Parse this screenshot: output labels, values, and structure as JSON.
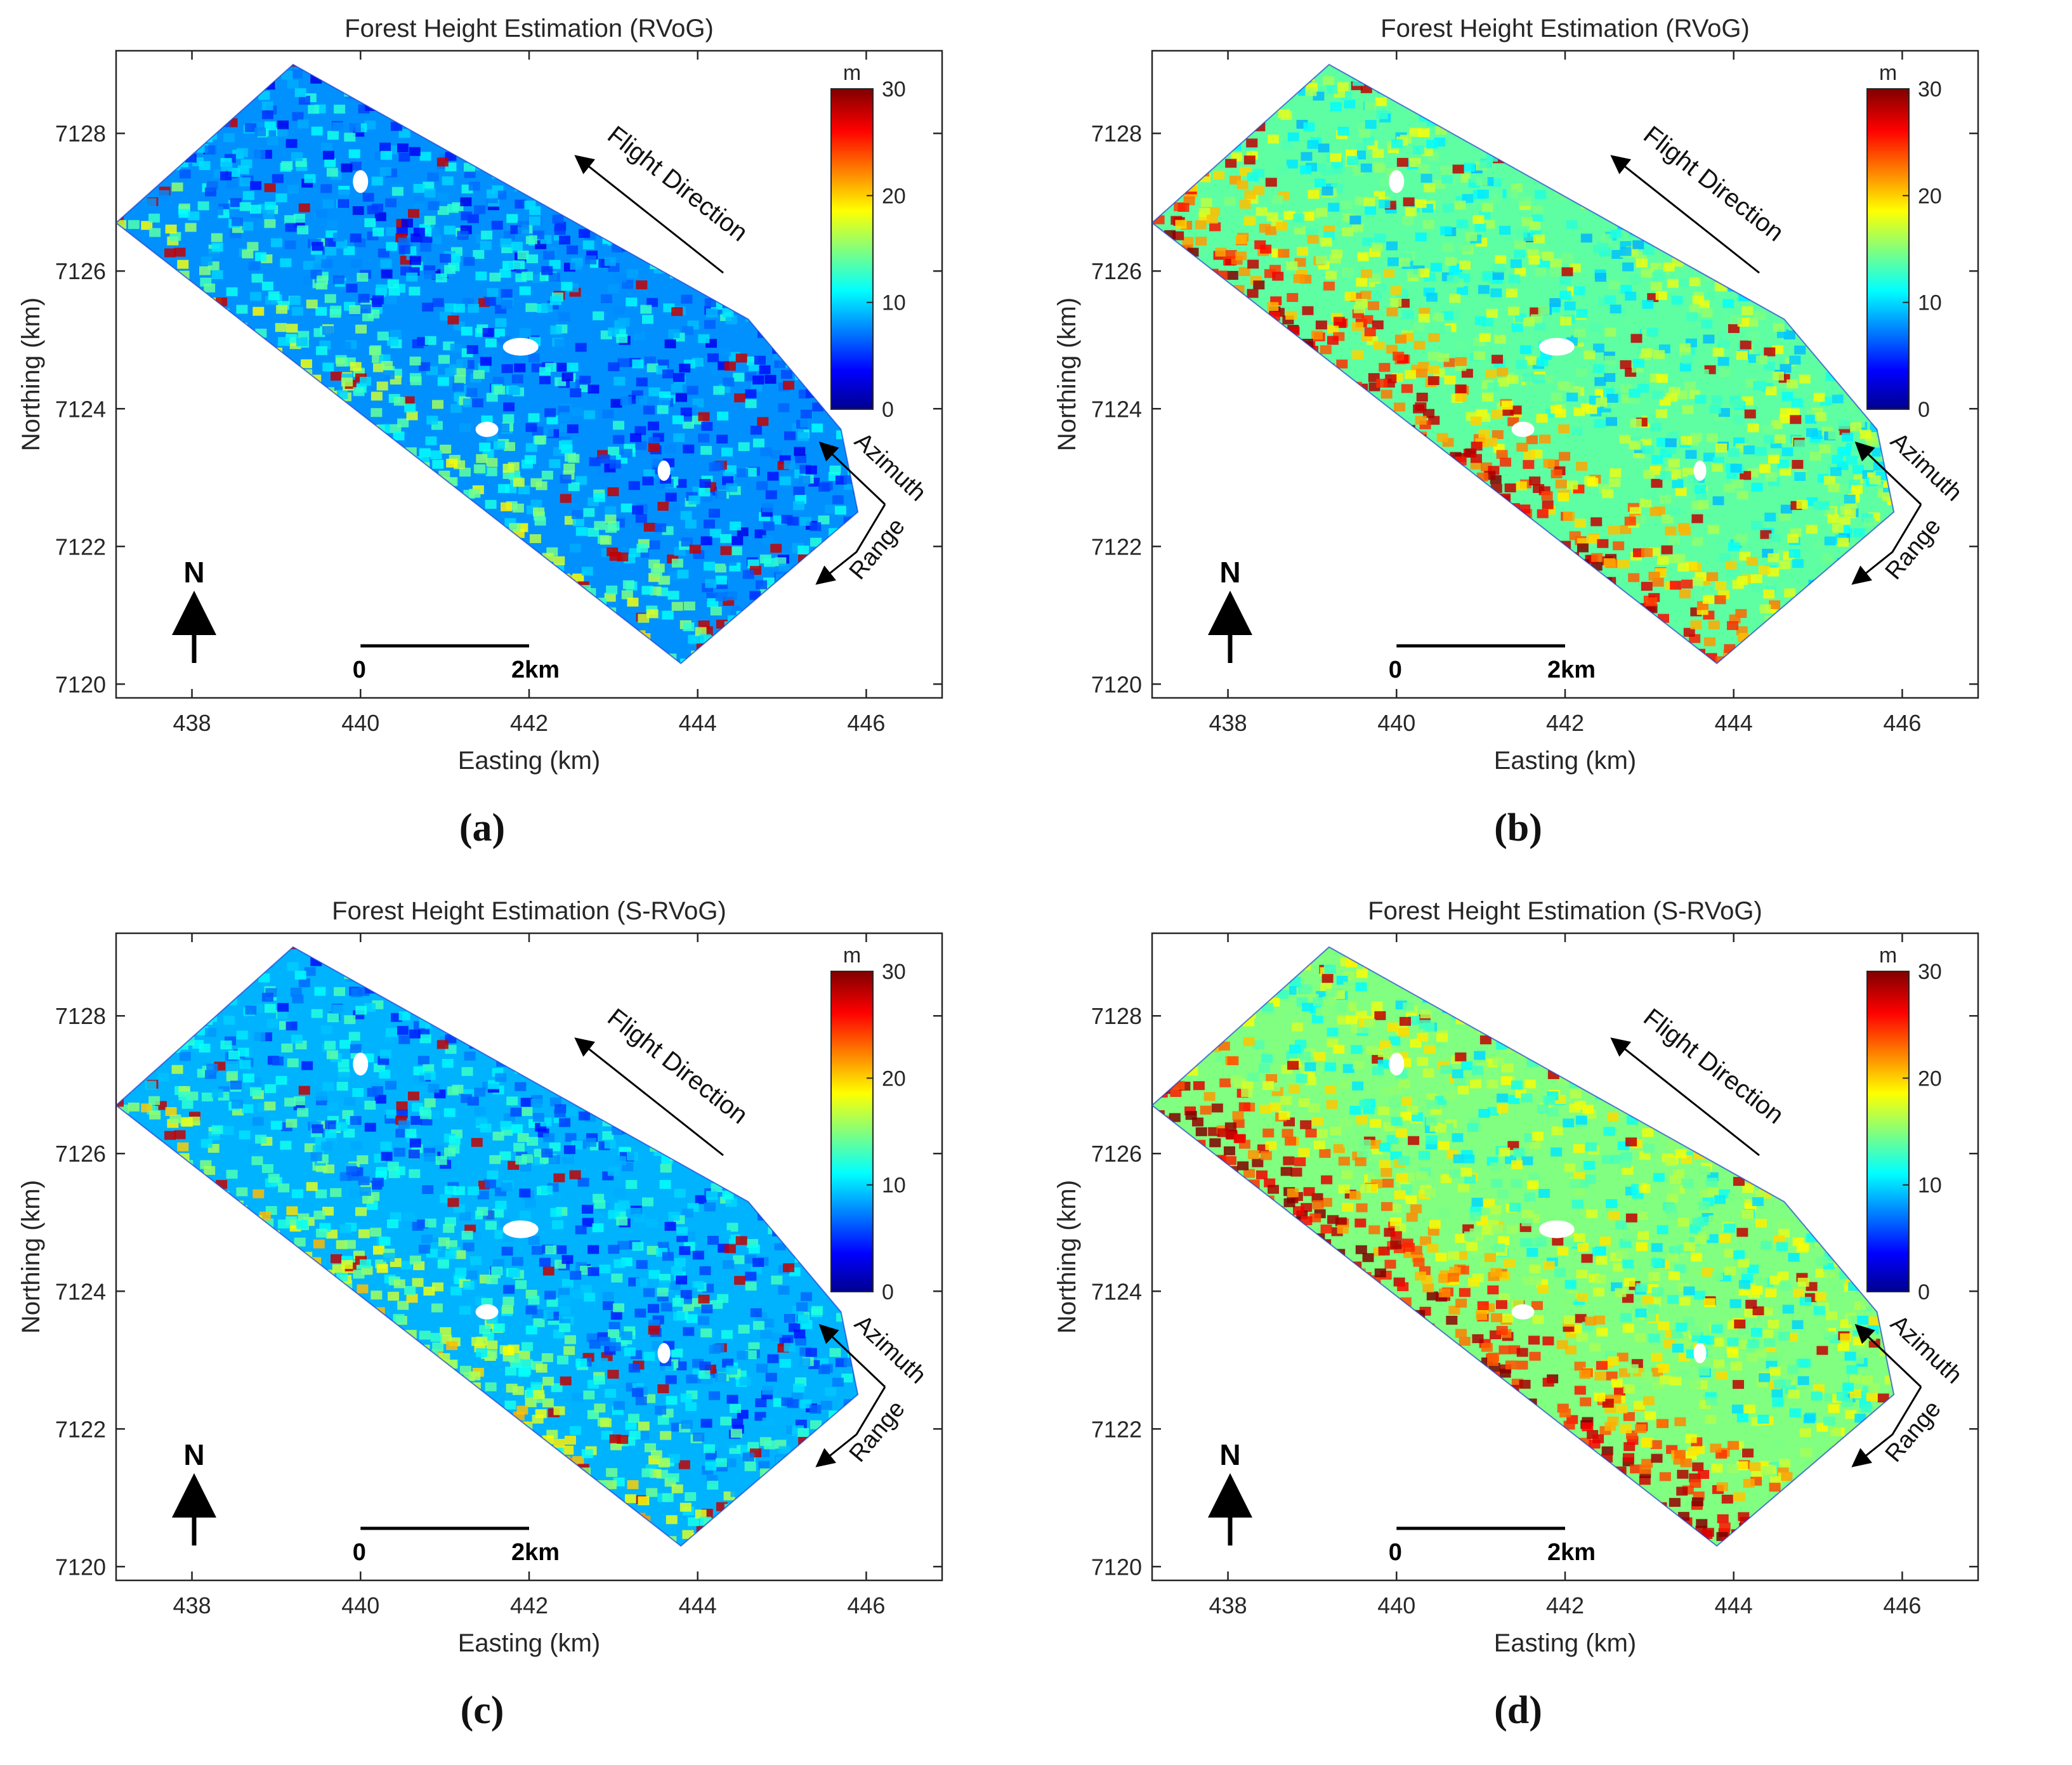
{
  "colors": {
    "jet_dark_blue": "#00008f",
    "jet_blue": "#0000ff",
    "jet_cyan": "#00ffff",
    "jet_yellow": "#ffff00",
    "jet_red": "#ff0000",
    "jet_dark_red": "#800000",
    "axis": "#262626"
  },
  "icons": {
    "north_arrow": "north-arrow-icon",
    "flight_arrow": "arrow-icon"
  },
  "panels": [
    {
      "caption": "(a)",
      "title": "Forest Height Estimation (RVoG)",
      "xlabel": "Easting (km)",
      "ylabel": "Northing (km)",
      "xticks": [
        "438",
        "440",
        "442",
        "444",
        "446"
      ],
      "yticks": [
        "7120",
        "7122",
        "7124",
        "7126",
        "7128"
      ],
      "colorbar": {
        "unit": "m",
        "ticks": [
          "0",
          "10",
          "20",
          "30"
        ],
        "range": [
          0,
          30
        ]
      },
      "flight_direction": "Flight Direction",
      "azimuth": "Azimuth",
      "range_label": "Range",
      "north": "N",
      "scalebar": {
        "start": "0",
        "end": "2km"
      },
      "dominant_height_m": 8
    },
    {
      "caption": "(b)",
      "title": "Forest Height Estimation (RVoG)",
      "xlabel": "Easting (km)",
      "ylabel": "Northing (km)",
      "xticks": [
        "438",
        "440",
        "442",
        "444",
        "446"
      ],
      "yticks": [
        "7120",
        "7122",
        "7124",
        "7126",
        "7128"
      ],
      "colorbar": {
        "unit": "m",
        "ticks": [
          "0",
          "10",
          "20",
          "30"
        ],
        "range": [
          0,
          30
        ]
      },
      "flight_direction": "Flight Direction",
      "azimuth": "Azimuth",
      "range_label": "Range",
      "north": "N",
      "scalebar": {
        "start": "0",
        "end": "2km"
      },
      "dominant_height_m": 14
    },
    {
      "caption": "(c)",
      "title": "Forest Height Estimation (S-RVoG)",
      "xlabel": "Easting (km)",
      "ylabel": "Northing (km)",
      "xticks": [
        "438",
        "440",
        "442",
        "444",
        "446"
      ],
      "yticks": [
        "7120",
        "7122",
        "7124",
        "7126",
        "7128"
      ],
      "colorbar": {
        "unit": "m",
        "ticks": [
          "0",
          "10",
          "20",
          "30"
        ],
        "range": [
          0,
          30
        ]
      },
      "flight_direction": "Flight Direction",
      "azimuth": "Azimuth",
      "range_label": "Range",
      "north": "N",
      "scalebar": {
        "start": "0",
        "end": "2km"
      },
      "dominant_height_m": 9
    },
    {
      "caption": "(d)",
      "title": "Forest Height Estimation (S-RVoG)",
      "xlabel": "Easting (km)",
      "ylabel": "Northing (km)",
      "xticks": [
        "438",
        "440",
        "442",
        "444",
        "446"
      ],
      "yticks": [
        "7120",
        "7122",
        "7124",
        "7126",
        "7128"
      ],
      "colorbar": {
        "unit": "m",
        "ticks": [
          "0",
          "10",
          "20",
          "30"
        ],
        "range": [
          0,
          30
        ]
      },
      "flight_direction": "Flight Direction",
      "azimuth": "Azimuth",
      "range_label": "Range",
      "north": "N",
      "scalebar": {
        "start": "0",
        "end": "2km"
      },
      "dominant_height_m": 15
    }
  ]
}
